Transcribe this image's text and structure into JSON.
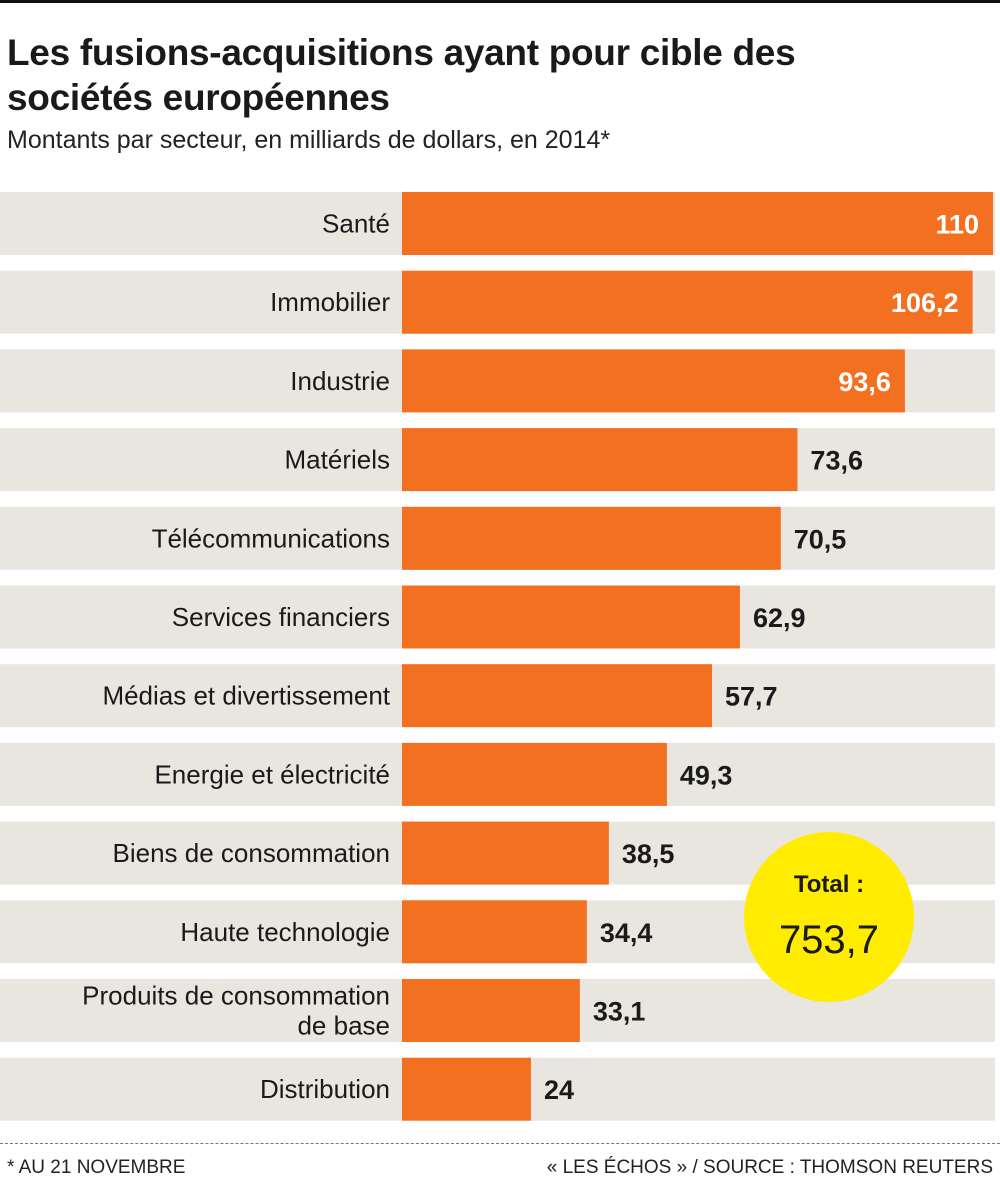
{
  "chart_data": {
    "type": "bar",
    "orientation": "horizontal",
    "title": "Les fusions-acquisitions ayant pour cible des sociétés européennes",
    "subtitle": "Montants par secteur, en milliards de dollars, en 2014*",
    "categories": [
      "Santé",
      "Immobilier",
      "Industrie",
      "Matériels",
      "Télécommunications",
      "Services financiers",
      "Médias et divertissement",
      "Energie et électricité",
      "Biens de consommation",
      "Haute technologie",
      "Produits de consommation de base",
      "Distribution"
    ],
    "category_lines": [
      [
        "Santé"
      ],
      [
        "Immobilier"
      ],
      [
        "Industrie"
      ],
      [
        "Matériels"
      ],
      [
        "Télécommunications"
      ],
      [
        "Services financiers"
      ],
      [
        "Médias et divertissement"
      ],
      [
        "Energie et électricité"
      ],
      [
        "Biens de consommation"
      ],
      [
        "Haute technologie"
      ],
      [
        "Produits de consommation",
        "de base"
      ],
      [
        "Distribution"
      ]
    ],
    "values": [
      110,
      106.2,
      93.6,
      73.6,
      70.5,
      62.9,
      57.7,
      49.3,
      38.5,
      34.4,
      33.1,
      24
    ],
    "data_labels": [
      "110",
      "106,2",
      "93,6",
      "73,6",
      "70,5",
      "62,9",
      "57,7",
      "49,3",
      "38,5",
      "34,4",
      "33,1",
      "24"
    ],
    "xlim": [
      0,
      110
    ],
    "grid": false,
    "colors": {
      "bar": "#f37021",
      "row_background": "#e8e6df",
      "total_badge": "#ffec00"
    },
    "total": {
      "label": "Total :",
      "value": "753,7"
    }
  },
  "footer": {
    "note": "* AU 21 NOVEMBRE",
    "source": "« LES ÉCHOS » / SOURCE : THOMSON REUTERS"
  }
}
